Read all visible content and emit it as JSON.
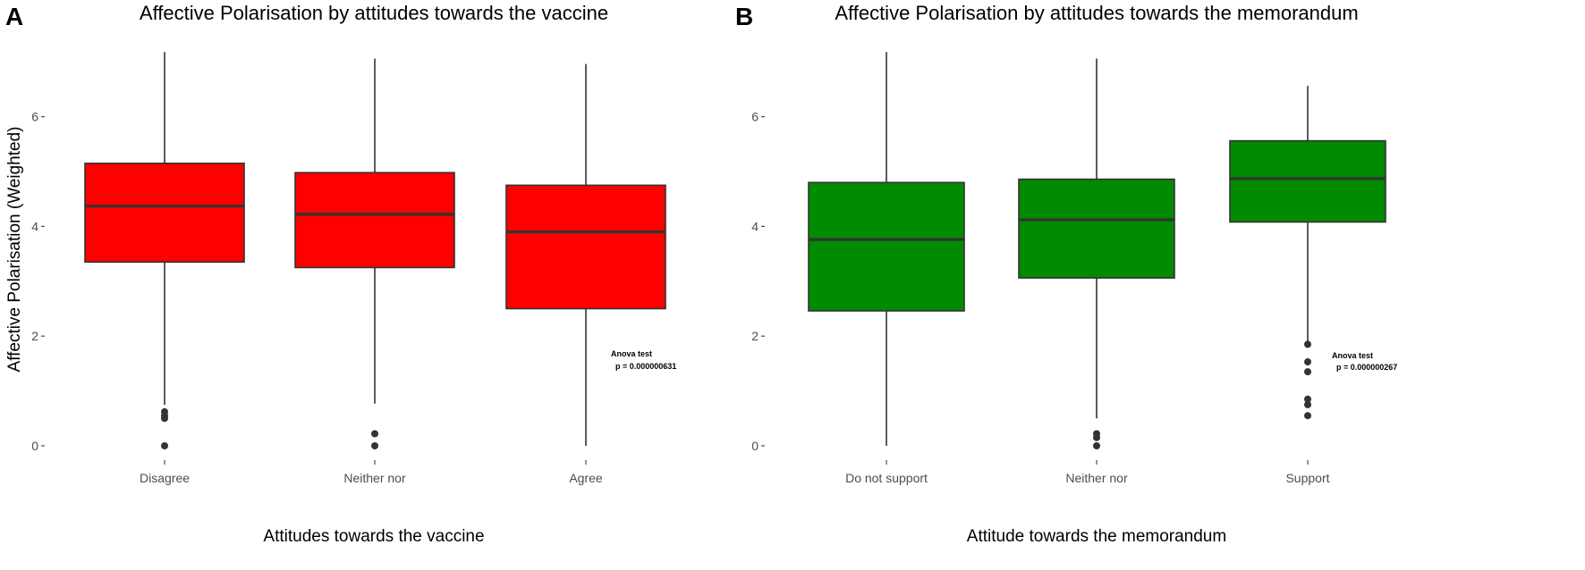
{
  "chart_data": [
    {
      "type": "box",
      "panel_label": "A",
      "title": "Affective Polarisation by attitudes towards the vaccine",
      "xlabel": "Attitudes towards the vaccine",
      "ylabel": "Affective Polarisation (Weighted)",
      "ylim": [
        0,
        7.2
      ],
      "yticks": [
        0,
        2,
        4,
        6
      ],
      "grid": false,
      "fill_color": "#ff0000",
      "categories": [
        "Disagree",
        "Neither nor",
        "Agree"
      ],
      "boxes": [
        {
          "min": 0.75,
          "q1": 3.35,
          "median": 4.37,
          "q3": 5.15,
          "max": 7.18,
          "outliers": [
            0.62,
            0.55,
            0.5,
            0.0
          ]
        },
        {
          "min": 0.77,
          "q1": 3.25,
          "median": 4.22,
          "q3": 4.98,
          "max": 7.06,
          "outliers": [
            0.22,
            0.0
          ]
        },
        {
          "min": 0.0,
          "q1": 2.5,
          "median": 3.9,
          "q3": 4.75,
          "max": 6.96,
          "outliers": []
        }
      ],
      "annotation": {
        "line1": "Anova test",
        "line2": "p = 0.000000631"
      }
    },
    {
      "type": "box",
      "panel_label": "B",
      "title": "Affective Polarisation by attitudes towards the memorandum",
      "xlabel": "Attitude towards the memorandum",
      "ylabel": "",
      "ylim": [
        0,
        7.2
      ],
      "yticks": [
        0,
        2,
        4,
        6
      ],
      "grid": false,
      "fill_color": "#008b00",
      "categories": [
        "Do not support",
        "Neither nor",
        "Support"
      ],
      "boxes": [
        {
          "min": 0.0,
          "q1": 2.46,
          "median": 3.76,
          "q3": 4.8,
          "max": 7.18,
          "outliers": []
        },
        {
          "min": 0.5,
          "q1": 3.06,
          "median": 4.12,
          "q3": 4.86,
          "max": 7.06,
          "outliers": [
            0.22,
            0.15,
            0.0
          ]
        },
        {
          "min": 1.85,
          "q1": 4.08,
          "median": 4.87,
          "q3": 5.56,
          "max": 6.56,
          "outliers": [
            1.85,
            1.53,
            1.35,
            0.85,
            0.75,
            0.55
          ]
        }
      ],
      "annotation": {
        "line1": "Anova test",
        "line2": "p = 0.000000267"
      }
    }
  ]
}
